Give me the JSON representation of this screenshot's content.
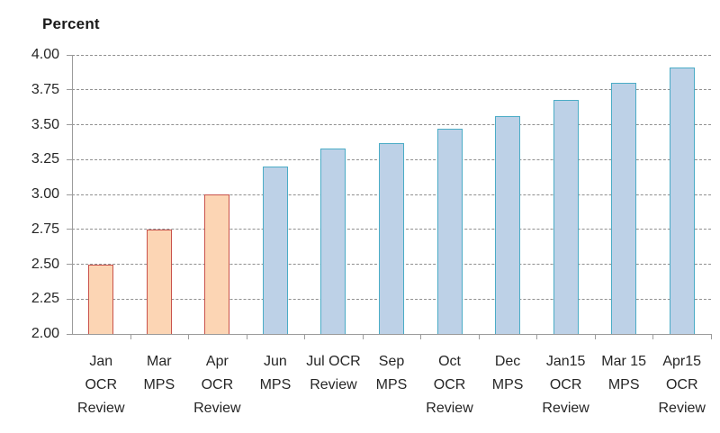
{
  "chart_data": {
    "type": "bar",
    "title": "Percent",
    "ylabel": "Percent",
    "xlabel": "",
    "ylim": [
      2.0,
      4.0
    ],
    "ytick_interval": 0.25,
    "yticks": [
      "4.00",
      "3.75",
      "3.50",
      "3.25",
      "3.00",
      "2.75",
      "2.50",
      "2.25",
      "2.00"
    ],
    "grid": "horizontal-dashed",
    "legend_position": "none",
    "categories": [
      "Jan OCR Review",
      "Mar MPS",
      "Apr OCR Review",
      "Jun MPS",
      "Jul OCR Review",
      "Sep MPS",
      "Oct OCR Review",
      "Dec MPS",
      "Jan15 OCR Review",
      "Mar 15 MPS",
      "Apr15 OCR Review"
    ],
    "category_label_lines": [
      [
        "Jan",
        "OCR",
        "Review"
      ],
      [
        "Mar",
        "MPS"
      ],
      [
        "Apr",
        "OCR",
        "Review"
      ],
      [
        "Jun",
        "MPS"
      ],
      [
        "Jul OCR",
        "Review"
      ],
      [
        "Sep",
        "MPS"
      ],
      [
        "Oct",
        "OCR",
        "Review"
      ],
      [
        "Dec",
        "MPS"
      ],
      [
        "Jan15",
        "OCR",
        "Review"
      ],
      [
        "Mar 15",
        "MPS"
      ],
      [
        "Apr15",
        "OCR",
        "Review"
      ]
    ],
    "values": [
      2.5,
      2.75,
      3.0,
      3.2,
      3.33,
      3.37,
      3.47,
      3.56,
      3.68,
      3.8,
      3.91
    ],
    "bar_color_groups": [
      "orange",
      "orange",
      "orange",
      "blue",
      "blue",
      "blue",
      "blue",
      "blue",
      "blue",
      "blue",
      "blue"
    ],
    "colors": {
      "orange_fill": "#FCD5B4",
      "orange_border": "#C9524B",
      "blue_fill": "#BDD1E7",
      "blue_border": "#4BACC6",
      "gridline": "#909090",
      "axis": "#9B9B9B",
      "text": "#262626"
    }
  }
}
